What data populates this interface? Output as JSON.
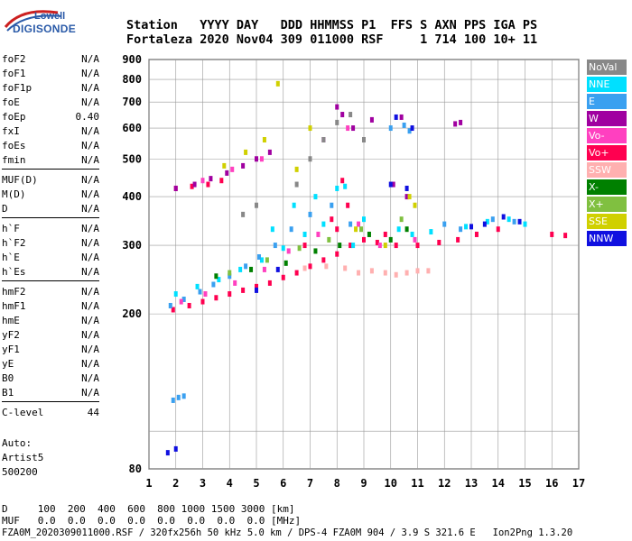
{
  "logo": {
    "top": "Lowell",
    "main": "DIGISONDE"
  },
  "header": {
    "line1": "Station   YYYY DAY   DDD HHMMSS P1  FFS S AXN PPS IGA PS",
    "line2": "Fortaleza 2020 Nov04 309 011000 RSF     1 714 100 10+ 11"
  },
  "params_groups": [
    [
      {
        "name": "foF2",
        "value": "N/A"
      },
      {
        "name": "foF1",
        "value": "N/A"
      },
      {
        "name": "foF1p",
        "value": "N/A"
      },
      {
        "name": "foE",
        "value": "N/A"
      },
      {
        "name": "foEp",
        "value": "0.40"
      },
      {
        "name": "fxI",
        "value": "N/A"
      },
      {
        "name": "foEs",
        "value": "N/A"
      },
      {
        "name": "fmin",
        "value": "N/A"
      }
    ],
    [
      {
        "name": "MUF(D)",
        "value": "N/A"
      },
      {
        "name": "M(D)",
        "value": "N/A"
      },
      {
        "name": "D",
        "value": "N/A"
      }
    ],
    [
      {
        "name": "h`F",
        "value": "N/A"
      },
      {
        "name": "h`F2",
        "value": "N/A"
      },
      {
        "name": "h`E",
        "value": "N/A"
      },
      {
        "name": "h`Es",
        "value": "N/A"
      }
    ],
    [
      {
        "name": "hmF2",
        "value": "N/A"
      },
      {
        "name": "hmF1",
        "value": "N/A"
      },
      {
        "name": "hmE",
        "value": "N/A"
      },
      {
        "name": "yF2",
        "value": "N/A"
      },
      {
        "name": "yF1",
        "value": "N/A"
      },
      {
        "name": "yE",
        "value": "N/A"
      },
      {
        "name": "B0",
        "value": "N/A"
      },
      {
        "name": "B1",
        "value": "N/A"
      }
    ],
    [
      {
        "name": "C-level",
        "value": "44"
      }
    ]
  ],
  "auto": {
    "line1": "Auto:",
    "line2": "Artist5",
    "line3": "500200"
  },
  "legend": [
    {
      "label": "NoVal",
      "color": "#888888"
    },
    {
      "label": "NNE",
      "color": "#00e0ff"
    },
    {
      "label": "E",
      "color": "#3aa0f0"
    },
    {
      "label": "W",
      "color": "#a000a0"
    },
    {
      "label": "Vo-",
      "color": "#ff40c0"
    },
    {
      "label": "Vo+",
      "color": "#ff0050"
    },
    {
      "label": "SSW",
      "color": "#ffb0b0"
    },
    {
      "label": "X-",
      "color": "#008000"
    },
    {
      "label": "X+",
      "color": "#80c040"
    },
    {
      "label": "SSE",
      "color": "#d0d000"
    },
    {
      "label": "NNW",
      "color": "#1010e0"
    }
  ],
  "footer": {
    "line1": "D     100  200  400  600  800 1000 1500 3000 [km]",
    "line2": "MUF   0.0  0.0  0.0  0.0  0.0  0.0  0.0  0.0 [MHz]",
    "line3": "FZA0M_2020309011000.RSF / 320fx256h 50 kHz 5.0 km / DPS-4 FZA0M 904 / 3.9 S 321.6 E   Ion2Png 1.3.20"
  },
  "chart_data": {
    "type": "scatter",
    "xlabel": "",
    "ylabel": "",
    "xlim": [
      1,
      17
    ],
    "ylim": [
      80,
      900
    ],
    "y_log": true,
    "x_ticks": [
      1,
      2,
      3,
      4,
      5,
      6,
      7,
      8,
      9,
      10,
      11,
      12,
      13,
      14,
      15,
      16,
      17
    ],
    "y_ticks": [
      80,
      100,
      200,
      300,
      400,
      500,
      600,
      700,
      800,
      900
    ],
    "y_tick_labels": [
      "80",
      "",
      "200",
      "300",
      "400",
      "500",
      "600",
      "700",
      "800",
      "900"
    ],
    "grid": true,
    "series": [
      {
        "name": "Vo+",
        "color": "#ff0050",
        "points": [
          [
            1.9,
            205
          ],
          [
            2.5,
            210
          ],
          [
            3.0,
            215
          ],
          [
            3.5,
            220
          ],
          [
            4.0,
            225
          ],
          [
            4.5,
            230
          ],
          [
            5.0,
            235
          ],
          [
            5.5,
            240
          ],
          [
            6.0,
            248
          ],
          [
            6.5,
            255
          ],
          [
            7.0,
            265
          ],
          [
            7.5,
            275
          ],
          [
            8.0,
            285
          ],
          [
            8.5,
            300
          ],
          [
            9.0,
            310
          ],
          [
            9.5,
            305
          ],
          [
            10.2,
            300
          ],
          [
            11.0,
            300
          ],
          [
            11.8,
            305
          ],
          [
            12.5,
            310
          ],
          [
            13.2,
            320
          ],
          [
            14.0,
            330
          ],
          [
            16.0,
            320
          ],
          [
            16.5,
            318
          ],
          [
            8.0,
            330
          ],
          [
            7.8,
            350
          ],
          [
            2.0,
            420
          ],
          [
            2.6,
            425
          ],
          [
            3.2,
            430
          ],
          [
            3.7,
            440
          ],
          [
            8.2,
            440
          ],
          [
            8.4,
            380
          ],
          [
            6.8,
            300
          ],
          [
            9.8,
            320
          ]
        ]
      },
      {
        "name": "NNE",
        "color": "#00e0ff",
        "points": [
          [
            2.0,
            225
          ],
          [
            2.8,
            235
          ],
          [
            3.6,
            245
          ],
          [
            4.4,
            260
          ],
          [
            5.2,
            275
          ],
          [
            6.0,
            295
          ],
          [
            6.8,
            320
          ],
          [
            7.5,
            340
          ],
          [
            8.0,
            420
          ],
          [
            8.3,
            425
          ],
          [
            9.0,
            350
          ],
          [
            10.3,
            330
          ],
          [
            10.8,
            320
          ],
          [
            11.5,
            325
          ],
          [
            12.8,
            335
          ],
          [
            13.6,
            345
          ],
          [
            14.4,
            350
          ],
          [
            15.0,
            340
          ],
          [
            5.6,
            330
          ],
          [
            6.4,
            380
          ],
          [
            7.2,
            400
          ],
          [
            8.6,
            300
          ]
        ]
      },
      {
        "name": "E",
        "color": "#3aa0f0",
        "points": [
          [
            1.8,
            210
          ],
          [
            2.3,
            218
          ],
          [
            2.9,
            228
          ],
          [
            3.4,
            238
          ],
          [
            4.0,
            250
          ],
          [
            4.6,
            265
          ],
          [
            5.1,
            280
          ],
          [
            5.7,
            300
          ],
          [
            6.3,
            330
          ],
          [
            7.0,
            360
          ],
          [
            7.8,
            380
          ],
          [
            8.5,
            340
          ],
          [
            10.0,
            600
          ],
          [
            10.5,
            610
          ],
          [
            10.7,
            590
          ],
          [
            12.0,
            340
          ],
          [
            12.6,
            330
          ],
          [
            13.8,
            350
          ],
          [
            14.6,
            345
          ],
          [
            1.9,
            120
          ],
          [
            2.1,
            122
          ],
          [
            2.3,
            123
          ]
        ]
      },
      {
        "name": "W",
        "color": "#a000a0",
        "points": [
          [
            2.0,
            420
          ],
          [
            2.7,
            430
          ],
          [
            3.3,
            445
          ],
          [
            3.9,
            460
          ],
          [
            4.5,
            480
          ],
          [
            5.0,
            500
          ],
          [
            5.5,
            520
          ],
          [
            8.0,
            680
          ],
          [
            8.2,
            650
          ],
          [
            8.6,
            600
          ],
          [
            9.3,
            630
          ],
          [
            10.4,
            640
          ],
          [
            12.4,
            615
          ],
          [
            12.6,
            620
          ],
          [
            7.5,
            560
          ],
          [
            10.1,
            430
          ],
          [
            10.6,
            400
          ]
        ]
      },
      {
        "name": "Vo-",
        "color": "#ff40c0",
        "points": [
          [
            2.2,
            215
          ],
          [
            3.1,
            225
          ],
          [
            4.2,
            240
          ],
          [
            5.3,
            260
          ],
          [
            6.2,
            290
          ],
          [
            7.3,
            320
          ],
          [
            8.8,
            340
          ],
          [
            9.6,
            300
          ],
          [
            10.9,
            310
          ],
          [
            3.0,
            440
          ],
          [
            4.1,
            470
          ],
          [
            5.2,
            500
          ],
          [
            8.4,
            600
          ],
          [
            9.0,
            560
          ]
        ]
      },
      {
        "name": "SSW",
        "color": "#ffb0b0",
        "points": [
          [
            8.8,
            255
          ],
          [
            9.3,
            258
          ],
          [
            9.8,
            255
          ],
          [
            10.2,
            252
          ],
          [
            10.6,
            255
          ],
          [
            11.0,
            258
          ],
          [
            11.4,
            258
          ],
          [
            8.3,
            262
          ],
          [
            7.6,
            265
          ],
          [
            6.8,
            262
          ]
        ]
      },
      {
        "name": "X-",
        "color": "#008000",
        "points": [
          [
            3.5,
            250
          ],
          [
            4.8,
            260
          ],
          [
            6.1,
            270
          ],
          [
            7.2,
            290
          ],
          [
            8.1,
            300
          ],
          [
            9.2,
            320
          ],
          [
            10.0,
            310
          ],
          [
            10.6,
            330
          ]
        ]
      },
      {
        "name": "X+",
        "color": "#80c040",
        "points": [
          [
            4.0,
            255
          ],
          [
            5.4,
            275
          ],
          [
            6.6,
            295
          ],
          [
            7.7,
            310
          ],
          [
            8.9,
            330
          ],
          [
            10.4,
            350
          ]
        ]
      },
      {
        "name": "SSE",
        "color": "#d0d000",
        "points": [
          [
            3.8,
            480
          ],
          [
            4.6,
            520
          ],
          [
            5.3,
            560
          ],
          [
            5.8,
            780
          ],
          [
            6.5,
            470
          ],
          [
            7.0,
            600
          ],
          [
            8.7,
            330
          ],
          [
            9.8,
            300
          ],
          [
            10.9,
            380
          ],
          [
            10.7,
            400
          ]
        ]
      },
      {
        "name": "NNW",
        "color": "#1010e0",
        "points": [
          [
            10.0,
            430
          ],
          [
            10.6,
            420
          ],
          [
            10.2,
            640
          ],
          [
            10.8,
            600
          ],
          [
            13.0,
            335
          ],
          [
            13.5,
            340
          ],
          [
            14.2,
            355
          ],
          [
            14.8,
            345
          ],
          [
            5.0,
            230
          ],
          [
            5.8,
            260
          ],
          [
            1.7,
            88
          ],
          [
            2.0,
            90
          ]
        ]
      },
      {
        "name": "NoVal",
        "color": "#888888",
        "points": [
          [
            4.5,
            360
          ],
          [
            5.0,
            380
          ],
          [
            6.5,
            430
          ],
          [
            7.0,
            500
          ],
          [
            7.5,
            560
          ],
          [
            8.0,
            620
          ],
          [
            8.5,
            650
          ],
          [
            9.0,
            560
          ]
        ]
      }
    ]
  }
}
